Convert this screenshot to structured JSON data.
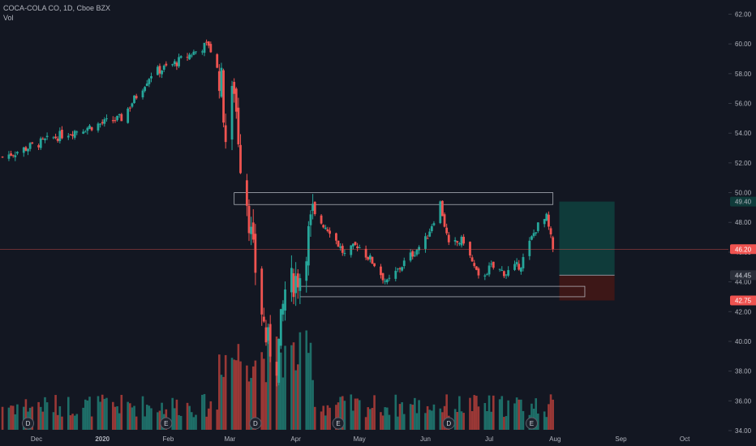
{
  "header": {
    "symbol_line": "COCA-COLA CO, 1D, Cboe BZX",
    "volume_label": "Vol"
  },
  "colors": {
    "background": "#131722",
    "up": "#26a69a",
    "down": "#ef5350",
    "vol_up": "#1e6e68",
    "vol_down": "#9b3836",
    "target_zone": "#0f3b3a",
    "stop_zone": "#3d1717",
    "box_stroke": "#d1d4dc",
    "price_line": "#ef5350",
    "axis_text": "#b2b5be"
  },
  "chart_data": {
    "type": "candlestick",
    "title": "COCA-COLA CO, 1D, Cboe BZX",
    "xlabel": "",
    "ylabel": "",
    "ylim": [
      34.0,
      63.0
    ],
    "grid": false,
    "y_ticks": [
      "34.00",
      "36.00",
      "38.00",
      "40.00",
      "42.00",
      "44.00",
      "46.00",
      "48.00",
      "50.00",
      "52.00",
      "54.00",
      "56.00",
      "58.00",
      "60.00",
      "62.00"
    ],
    "x_ticks": [
      {
        "label": "Dec",
        "date": "2019-12-01"
      },
      {
        "label": "2020",
        "date": "2020-01-01"
      },
      {
        "label": "Feb",
        "date": "2020-02-01"
      },
      {
        "label": "Mar",
        "date": "2020-03-01"
      },
      {
        "label": "Apr",
        "date": "2020-04-01"
      },
      {
        "label": "May",
        "date": "2020-05-01"
      },
      {
        "label": "Jun",
        "date": "2020-06-01"
      },
      {
        "label": "Jul",
        "date": "2020-07-01"
      },
      {
        "label": "Aug",
        "date": "2020-08-01"
      },
      {
        "label": "Sep",
        "date": "2020-09-01"
      },
      {
        "label": "Oct",
        "date": "2020-10-01"
      }
    ],
    "price_labels": [
      {
        "text": "49.40",
        "value": 49.4,
        "bg": "#0f3b3a",
        "fg": "#b2b5be"
      },
      {
        "text": "46.20",
        "value": 46.2,
        "bg": "#ef5350",
        "fg": "#ffffff"
      },
      {
        "text": "44.45",
        "value": 44.45,
        "bg": "#2a2e39",
        "fg": "#d1d4dc"
      },
      {
        "text": "42.75",
        "value": 42.75,
        "bg": "#ef5350",
        "fg": "#ffffff"
      }
    ],
    "current_price": 46.2,
    "zones": [
      {
        "name": "resistance",
        "from": "2020-03-03",
        "to": "2020-07-31",
        "low": 49.2,
        "high": 50.0
      },
      {
        "name": "support",
        "from": "2020-04-03",
        "to": "2020-08-15",
        "low": 43.0,
        "high": 43.7
      }
    ],
    "position": {
      "from": "2020-08-03",
      "to": "2020-08-29",
      "entry": 44.45,
      "target": 49.4,
      "stop": 42.75
    },
    "events": [
      {
        "label": "D",
        "date": "2019-11-27"
      },
      {
        "label": "E",
        "date": "2020-01-31"
      },
      {
        "label": "D",
        "date": "2020-03-13"
      },
      {
        "label": "E",
        "date": "2020-04-21"
      },
      {
        "label": "D",
        "date": "2020-06-12"
      },
      {
        "label": "E",
        "date": "2020-07-21"
      }
    ],
    "anchors": [
      {
        "date": "2019-11-15",
        "price": 52.4
      },
      {
        "date": "2019-12-15",
        "price": 54.0
      },
      {
        "date": "2020-01-10",
        "price": 55.0
      },
      {
        "date": "2020-01-24",
        "price": 58.0
      },
      {
        "date": "2020-02-03",
        "price": 58.6
      },
      {
        "date": "2020-02-20",
        "price": 60.0
      },
      {
        "date": "2020-02-26",
        "price": 57.4
      },
      {
        "date": "2020-02-28",
        "price": 53.6
      },
      {
        "date": "2020-03-03",
        "price": 57.2
      },
      {
        "date": "2020-03-06",
        "price": 52.2
      },
      {
        "date": "2020-03-09",
        "price": 49.6
      },
      {
        "date": "2020-03-12",
        "price": 45.8
      },
      {
        "date": "2020-03-18",
        "price": 40.2
      },
      {
        "date": "2020-03-23",
        "price": 38.6
      },
      {
        "date": "2020-03-27",
        "price": 43.5
      },
      {
        "date": "2020-04-03",
        "price": 44.5
      },
      {
        "date": "2020-04-09",
        "price": 48.5
      },
      {
        "date": "2020-04-17",
        "price": 47.5
      },
      {
        "date": "2020-04-24",
        "price": 45.8
      },
      {
        "date": "2020-04-30",
        "price": 46.5
      },
      {
        "date": "2020-05-08",
        "price": 45.2
      },
      {
        "date": "2020-05-14",
        "price": 43.9
      },
      {
        "date": "2020-05-22",
        "price": 45.3
      },
      {
        "date": "2020-06-01",
        "price": 46.8
      },
      {
        "date": "2020-06-08",
        "price": 49.3
      },
      {
        "date": "2020-06-12",
        "price": 46.4
      },
      {
        "date": "2020-06-19",
        "price": 46.8
      },
      {
        "date": "2020-06-26",
        "price": 44.2
      },
      {
        "date": "2020-07-02",
        "price": 45.0
      },
      {
        "date": "2020-07-09",
        "price": 44.6
      },
      {
        "date": "2020-07-16",
        "price": 45.2
      },
      {
        "date": "2020-07-23",
        "price": 47.6
      },
      {
        "date": "2020-07-28",
        "price": 48.3
      },
      {
        "date": "2020-07-31",
        "price": 46.2
      }
    ],
    "volume_scale_note": "volume axis unlabeled"
  }
}
